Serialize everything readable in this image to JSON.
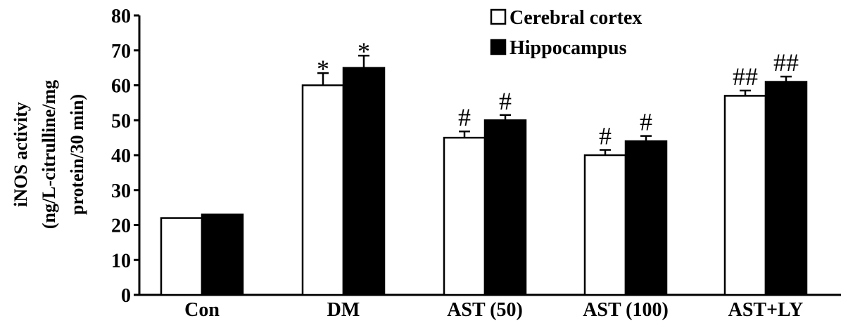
{
  "chart_data": {
    "type": "bar",
    "ylabel_lines": [
      "iNOS activity",
      "(ng/L-citrulline/mg",
      "protein/30 min)"
    ],
    "xlabel": "",
    "ylim": [
      0,
      80
    ],
    "yticks": [
      "0",
      "10",
      "20",
      "30",
      "40",
      "50",
      "60",
      "70",
      "80"
    ],
    "categories": [
      "Con",
      "DM",
      "AST (50)",
      "AST (100)",
      "AST+LY"
    ],
    "series": [
      {
        "name": "Cerebral cortex",
        "color": "#ffffff",
        "values": [
          22,
          60,
          45,
          40,
          57
        ],
        "errors": [
          0,
          3.5,
          1.8,
          1.5,
          1.5
        ],
        "annotations": [
          "",
          "*",
          "#",
          "#",
          "##"
        ]
      },
      {
        "name": "Hippocampus",
        "color": "#000000",
        "values": [
          23,
          65,
          50,
          44,
          61
        ],
        "errors": [
          0,
          3.5,
          1.5,
          1.5,
          1.5
        ],
        "annotations": [
          "",
          "*",
          "#",
          "#",
          "##"
        ]
      }
    ],
    "legend_position": "top-right",
    "grid": false
  }
}
